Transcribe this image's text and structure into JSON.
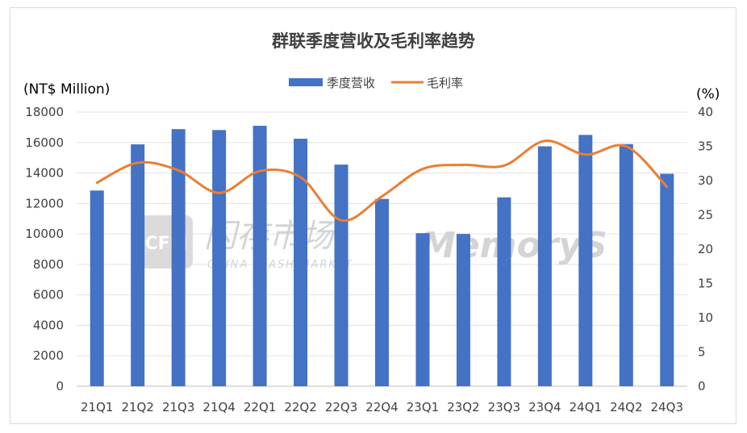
{
  "chart_data": {
    "type": "bar+line",
    "title": "群联季度营收及毛利率趋势",
    "left_axis_unit": "(NT$ Million)",
    "right_axis_unit": "(%)",
    "categories": [
      "21Q1",
      "21Q2",
      "21Q3",
      "21Q4",
      "22Q1",
      "22Q2",
      "22Q3",
      "22Q4",
      "23Q1",
      "23Q2",
      "23Q3",
      "23Q4",
      "24Q1",
      "24Q2",
      "24Q3"
    ],
    "series": [
      {
        "name": "季度营收",
        "type": "bar",
        "axis": "left",
        "color": "#4472c4",
        "values": [
          12850,
          15880,
          16880,
          16820,
          17100,
          16250,
          14550,
          12300,
          10050,
          10000,
          12400,
          15750,
          16500,
          15900,
          13950
        ]
      },
      {
        "name": "毛利率",
        "type": "line",
        "axis": "right",
        "color": "#ed7d31",
        "values": [
          29.7,
          32.6,
          31.5,
          28.2,
          31.4,
          30.5,
          24.2,
          27.7,
          31.7,
          32.3,
          32.2,
          35.8,
          33.8,
          35.0,
          29.1
        ]
      }
    ],
    "ylim_left": [
      0,
      18000
    ],
    "yticks_left": [
      "0",
      "2000",
      "4000",
      "6000",
      "8000",
      "10000",
      "12000",
      "14000",
      "16000",
      "18000"
    ],
    "ylim_right": [
      0,
      40
    ],
    "yticks_right": [
      "0",
      "5",
      "10",
      "15",
      "20",
      "25",
      "30",
      "35",
      "40"
    ],
    "grid": true,
    "legend_position": "top-center"
  },
  "watermark": {
    "logo_text": "CFM",
    "brand_cn": "闪存市场",
    "brand_en": "CHINA FLASH MARKET",
    "brand_right": "MemoryS"
  }
}
